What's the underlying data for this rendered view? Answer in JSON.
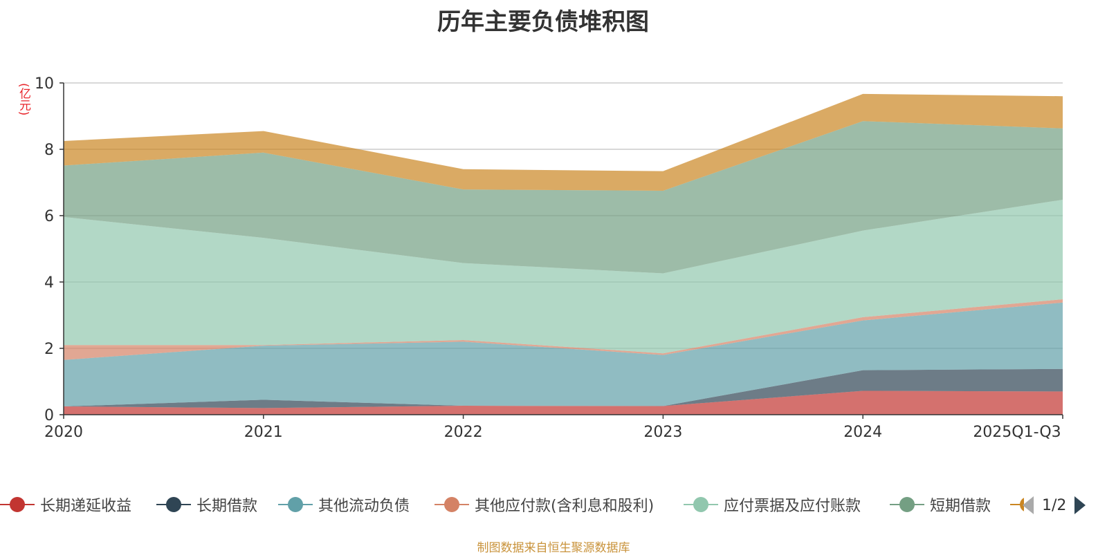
{
  "title": "历年主要负债堆积图",
  "unit_label": "(亿元)",
  "source_note": "制图数据来自恒生聚源数据库",
  "legend_pager": {
    "page_text": "1/2"
  },
  "chart_data": {
    "type": "area",
    "stacked": true,
    "categories": [
      "2020",
      "2021",
      "2022",
      "2023",
      "2024",
      "2025Q1-Q3"
    ],
    "ylim": [
      0,
      10
    ],
    "yticks": [
      "0",
      "2",
      "4",
      "6",
      "8",
      "10"
    ],
    "grid": true,
    "legend_placement": "bottom",
    "series": [
      {
        "name": "长期递延收益",
        "color": "#c23531",
        "values": [
          0.25,
          0.2,
          0.27,
          0.26,
          0.72,
          0.7
        ]
      },
      {
        "name": "长期借款",
        "color": "#2f4554",
        "values": [
          0.0,
          0.25,
          0.0,
          0.0,
          0.62,
          0.68
        ]
      },
      {
        "name": "其他流动负债",
        "color": "#61a0a8",
        "values": [
          1.4,
          1.63,
          1.93,
          1.54,
          1.5,
          2.0
        ]
      },
      {
        "name": "其他应付款(含利息和股利)",
        "color": "#d48265",
        "values": [
          0.45,
          0.02,
          0.05,
          0.05,
          0.1,
          0.1
        ]
      },
      {
        "name": "应付票据及应付账款",
        "color": "#91c7ae",
        "values": [
          3.86,
          3.23,
          2.32,
          2.41,
          2.61,
          3.0
        ]
      },
      {
        "name": "短期借款",
        "color": "#749f83",
        "values": [
          1.55,
          2.57,
          2.22,
          2.49,
          3.3,
          2.15
        ]
      },
      {
        "name": "",
        "color": "#ca8622",
        "values": [
          0.74,
          0.65,
          0.61,
          0.59,
          0.82,
          0.97
        ]
      }
    ]
  }
}
